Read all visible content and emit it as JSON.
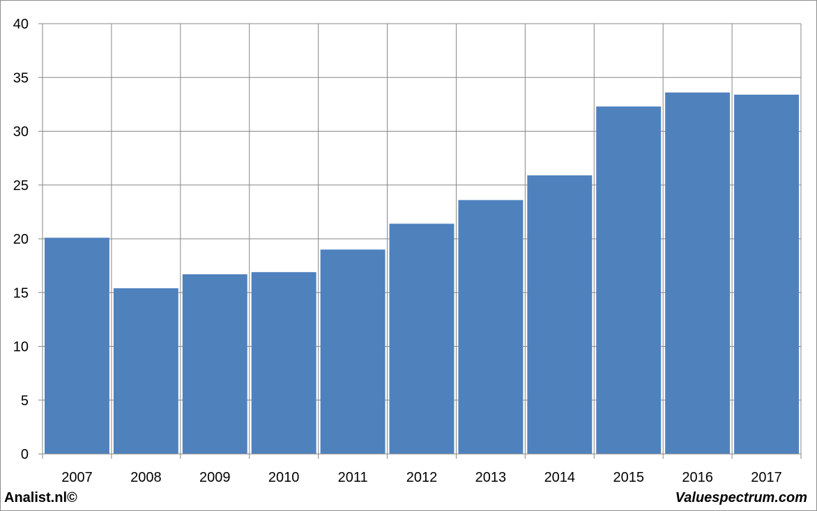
{
  "chart_data": {
    "type": "bar",
    "categories": [
      "2007",
      "2008",
      "2009",
      "2010",
      "2011",
      "2012",
      "2013",
      "2014",
      "2015",
      "2016",
      "2017"
    ],
    "values": [
      20.1,
      15.4,
      16.7,
      16.9,
      19.0,
      21.4,
      23.6,
      25.9,
      32.3,
      33.6,
      33.4
    ],
    "title": "",
    "xlabel": "",
    "ylabel": "",
    "ylim": [
      0,
      40
    ],
    "yticks": [
      "0",
      "5",
      "10",
      "15",
      "20",
      "25",
      "30",
      "35",
      "40"
    ],
    "grid": true,
    "legend": "none",
    "bar_color": "#4f81bd",
    "grid_color": "#868686"
  },
  "footer": {
    "left": "Analist.nl©",
    "right": "Valuespectrum.com"
  }
}
